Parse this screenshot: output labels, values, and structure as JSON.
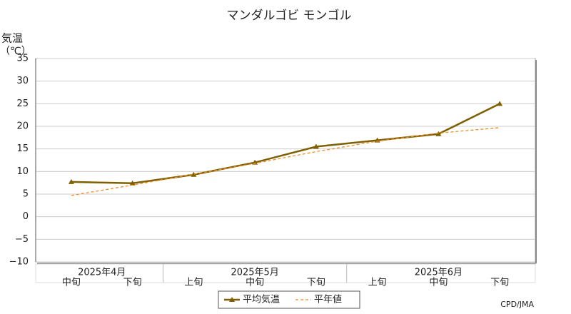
{
  "chart_data": {
    "type": "line",
    "title": "マンダルゴビ モンゴル",
    "y_label": "気温",
    "y_unit": "（℃）",
    "categories": [
      "中旬",
      "下旬",
      "上旬",
      "中旬",
      "下旬",
      "上旬",
      "中旬",
      "下旬"
    ],
    "x_groups": [
      {
        "label": "2025年4月",
        "count": 2
      },
      {
        "label": "2025年5月",
        "count": 3
      },
      {
        "label": "2025年6月",
        "count": 3
      }
    ],
    "series": [
      {
        "name": "平均気温",
        "color": "#7f6000",
        "style": "solid",
        "values": [
          7.7,
          7.4,
          9.3,
          12.0,
          15.5,
          16.9,
          18.3,
          25.0
        ]
      },
      {
        "name": "平年値",
        "color": "#f08c28",
        "style": "dashed",
        "values": [
          4.7,
          7.0,
          9.4,
          11.8,
          14.4,
          16.7,
          18.5,
          19.7
        ]
      }
    ],
    "ylim": [
      -10,
      35
    ],
    "yticks": [
      {
        "value": -10,
        "label": "−10"
      },
      {
        "value": -5,
        "label": "−5"
      },
      0,
      5,
      10,
      15,
      20,
      25,
      30,
      35
    ],
    "grid": true,
    "legend": "bottom",
    "credit": "CPD/JMA"
  }
}
